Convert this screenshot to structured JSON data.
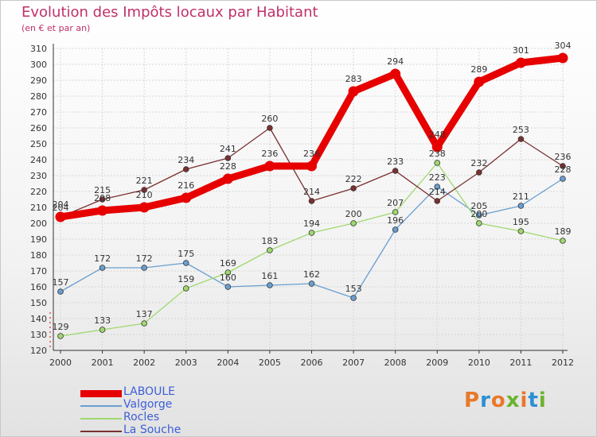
{
  "title": "Evolution des Impôts locaux par Habitant",
  "subtitle": "(en € et par an)",
  "logo": {
    "text": "Proxiti",
    "colors": [
      "#e8792a",
      "#2d8fd5",
      "#e8792a",
      "#6ab42d",
      "#e8792a",
      "#2d8fd5",
      "#6ab42d"
    ]
  },
  "chart_data": {
    "type": "line",
    "title": "Evolution des Impôts locaux par Habitant",
    "subtitle": "(en € et par an)",
    "xlabel": "",
    "ylabel": "",
    "ylim": [
      120,
      310
    ],
    "yticks": [
      120,
      130,
      140,
      150,
      160,
      170,
      180,
      190,
      200,
      210,
      220,
      230,
      240,
      250,
      260,
      270,
      280,
      290,
      300,
      310
    ],
    "grid": true,
    "legend_position": "bottom-left",
    "categories": [
      "2000",
      "2001",
      "2002",
      "2003",
      "2004",
      "2005",
      "2006",
      "2007",
      "2008",
      "2009",
      "2010",
      "2011",
      "2012"
    ],
    "series": [
      {
        "name": "LABOULE",
        "color": "#e60000",
        "values": [
          204,
          208,
          210,
          216,
          228,
          236,
          236,
          283,
          294,
          248,
          289,
          301,
          304
        ]
      },
      {
        "name": "Valgorge",
        "color": "#6a9fd0",
        "values": [
          157,
          172,
          172,
          175,
          160,
          161,
          162,
          153,
          196,
          223,
          205,
          211,
          228
        ]
      },
      {
        "name": "Rocles",
        "color": "#9fd86f",
        "values": [
          129,
          133,
          137,
          159,
          169,
          183,
          194,
          200,
          207,
          238,
          200,
          195,
          189
        ]
      },
      {
        "name": "La Souche",
        "color": "#7a3030",
        "values": [
          204,
          215,
          221,
          234,
          241,
          260,
          214,
          222,
          233,
          214,
          232,
          253,
          236
        ]
      }
    ]
  }
}
